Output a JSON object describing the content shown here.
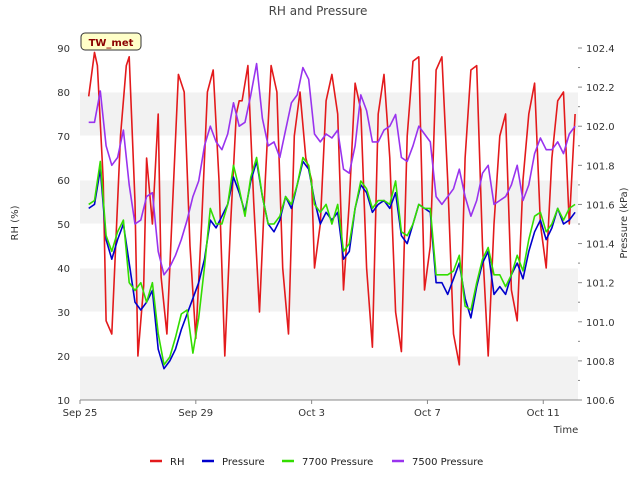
{
  "chart_data": {
    "type": "line",
    "title": "RH and Pressure",
    "badge": "TW_met",
    "xlabel": "Time",
    "ylabel_left": "RH (%)",
    "ylabel_right": "Pressure (kPa)",
    "xlim": [
      0,
      17.2
    ],
    "ylim_left": [
      10,
      90
    ],
    "ylim_right": [
      100.6,
      102.4
    ],
    "x_ticks": [
      {
        "x": 0,
        "label": "Sep 25"
      },
      {
        "x": 4,
        "label": "Sep 29"
      },
      {
        "x": 8,
        "label": "Oct 3"
      },
      {
        "x": 12,
        "label": "Oct 7"
      },
      {
        "x": 16,
        "label": "Oct 11"
      }
    ],
    "y_ticks_left": [
      10,
      20,
      30,
      40,
      50,
      60,
      70,
      80,
      90
    ],
    "y_ticks_right": [
      "100.6",
      "100.8",
      "101.0",
      "101.2",
      "101.4",
      "101.6",
      "101.8",
      "102.0",
      "102.2",
      "102.4"
    ],
    "grid": true,
    "legend_position": "bottom",
    "series": [
      {
        "name": "RH",
        "axis": "left",
        "color": "#e31a1c",
        "x": [
          0.3,
          0.5,
          0.6,
          0.8,
          0.9,
          1.1,
          1.2,
          1.4,
          1.6,
          1.7,
          1.9,
          2.0,
          2.2,
          2.3,
          2.5,
          2.7,
          2.8,
          3.0,
          3.2,
          3.4,
          3.6,
          3.8,
          4.0,
          4.2,
          4.4,
          4.6,
          4.8,
          5.0,
          5.2,
          5.4,
          5.5,
          5.6,
          5.8,
          6.0,
          6.2,
          6.4,
          6.6,
          6.8,
          7.0,
          7.2,
          7.4,
          7.6,
          7.8,
          8.0,
          8.1,
          8.2,
          8.3,
          8.5,
          8.7,
          8.9,
          9.1,
          9.3,
          9.5,
          9.7,
          9.9,
          10.1,
          10.3,
          10.5,
          10.7,
          10.9,
          11.1,
          11.3,
          11.5,
          11.7,
          11.9,
          12.1,
          12.3,
          12.5,
          12.7,
          12.9,
          13.1,
          13.3,
          13.5,
          13.7,
          13.9,
          14.1,
          14.3,
          14.5,
          14.7,
          14.9,
          15.1,
          15.3,
          15.5,
          15.7,
          15.9,
          16.1,
          16.3,
          16.5,
          16.7,
          16.9,
          17.1
        ],
        "y": [
          79,
          89,
          86,
          60,
          28,
          25,
          40,
          70,
          86,
          88,
          55,
          20,
          36,
          65,
          50,
          75,
          38,
          25,
          55,
          84,
          80,
          45,
          24,
          50,
          80,
          85,
          60,
          20,
          50,
          75,
          78,
          78,
          86,
          55,
          30,
          60,
          86,
          80,
          40,
          25,
          70,
          80,
          65,
          60,
          40,
          45,
          50,
          78,
          84,
          75,
          35,
          55,
          82,
          76,
          40,
          22,
          75,
          84,
          65,
          30,
          21,
          70,
          87,
          88,
          35,
          45,
          85,
          88,
          60,
          25,
          18,
          65,
          85,
          86,
          45,
          20,
          50,
          70,
          75,
          35,
          28,
          60,
          75,
          82,
          50,
          40,
          65,
          78,
          80,
          50,
          75
        ]
      },
      {
        "name": "Pressure",
        "axis": "right",
        "color": "#0000cc",
        "x": [
          0.3,
          0.5,
          0.7,
          0.9,
          1.1,
          1.3,
          1.5,
          1.7,
          1.9,
          2.1,
          2.3,
          2.5,
          2.7,
          2.9,
          3.1,
          3.3,
          3.5,
          3.7,
          3.9,
          4.1,
          4.3,
          4.5,
          4.7,
          4.9,
          5.1,
          5.3,
          5.5,
          5.7,
          5.9,
          6.1,
          6.3,
          6.5,
          6.7,
          6.9,
          7.1,
          7.3,
          7.5,
          7.7,
          7.9,
          8.1,
          8.3,
          8.5,
          8.7,
          8.9,
          9.1,
          9.3,
          9.5,
          9.7,
          9.9,
          10.1,
          10.3,
          10.5,
          10.7,
          10.9,
          11.1,
          11.3,
          11.5,
          11.7,
          11.9,
          12.1,
          12.3,
          12.5,
          12.7,
          12.9,
          13.1,
          13.3,
          13.5,
          13.7,
          13.9,
          14.1,
          14.3,
          14.5,
          14.7,
          14.9,
          15.1,
          15.3,
          15.5,
          15.7,
          15.9,
          16.1,
          16.3,
          16.5,
          16.7,
          16.9,
          17.1
        ],
        "y": [
          101.58,
          101.6,
          101.78,
          101.42,
          101.32,
          101.42,
          101.5,
          101.3,
          101.1,
          101.06,
          101.1,
          101.16,
          100.86,
          100.76,
          100.8,
          100.86,
          100.96,
          101.04,
          101.12,
          101.2,
          101.32,
          101.52,
          101.48,
          101.54,
          101.6,
          101.74,
          101.66,
          101.56,
          101.72,
          101.82,
          101.64,
          101.5,
          101.46,
          101.52,
          101.64,
          101.58,
          101.7,
          101.82,
          101.78,
          101.62,
          101.5,
          101.56,
          101.52,
          101.56,
          101.32,
          101.36,
          101.58,
          101.7,
          101.66,
          101.56,
          101.6,
          101.62,
          101.58,
          101.66,
          101.44,
          101.4,
          101.5,
          101.6,
          101.58,
          101.56,
          101.2,
          101.2,
          101.14,
          101.22,
          101.3,
          101.12,
          101.02,
          101.18,
          101.3,
          101.36,
          101.14,
          101.18,
          101.14,
          101.24,
          101.3,
          101.22,
          101.36,
          101.46,
          101.52,
          101.42,
          101.48,
          101.58,
          101.5,
          101.52,
          101.56
        ]
      },
      {
        "name": "7700 Pressure",
        "axis": "right",
        "color": "#33dd00",
        "x": [
          0.3,
          0.5,
          0.7,
          0.9,
          1.1,
          1.3,
          1.5,
          1.7,
          1.9,
          2.1,
          2.3,
          2.5,
          2.7,
          2.9,
          3.1,
          3.3,
          3.5,
          3.7,
          3.9,
          4.1,
          4.3,
          4.5,
          4.7,
          4.9,
          5.1,
          5.3,
          5.5,
          5.7,
          5.9,
          6.1,
          6.3,
          6.5,
          6.7,
          6.9,
          7.1,
          7.3,
          7.5,
          7.7,
          7.9,
          8.1,
          8.3,
          8.5,
          8.7,
          8.9,
          9.1,
          9.3,
          9.5,
          9.7,
          9.9,
          10.1,
          10.3,
          10.5,
          10.7,
          10.9,
          11.1,
          11.3,
          11.5,
          11.7,
          11.9,
          12.1,
          12.3,
          12.5,
          12.7,
          12.9,
          13.1,
          13.3,
          13.5,
          13.7,
          13.9,
          14.1,
          14.3,
          14.5,
          14.7,
          14.9,
          15.1,
          15.3,
          15.5,
          15.7,
          15.9,
          16.1,
          16.3,
          16.5,
          16.7,
          16.9,
          17.1
        ],
        "y": [
          101.6,
          101.62,
          101.82,
          101.44,
          101.36,
          101.46,
          101.52,
          101.2,
          101.16,
          101.2,
          101.1,
          101.2,
          100.94,
          100.78,
          100.82,
          100.92,
          101.04,
          101.06,
          100.84,
          101.02,
          101.28,
          101.58,
          101.5,
          101.5,
          101.6,
          101.8,
          101.68,
          101.54,
          101.74,
          101.84,
          101.64,
          101.5,
          101.5,
          101.54,
          101.64,
          101.6,
          101.7,
          101.84,
          101.8,
          101.6,
          101.56,
          101.6,
          101.5,
          101.6,
          101.36,
          101.4,
          101.58,
          101.72,
          101.68,
          101.58,
          101.62,
          101.62,
          101.6,
          101.72,
          101.46,
          101.44,
          101.5,
          101.6,
          101.58,
          101.58,
          101.24,
          101.24,
          101.24,
          101.26,
          101.34,
          101.08,
          101.06,
          101.2,
          101.32,
          101.38,
          101.24,
          101.24,
          101.18,
          101.24,
          101.34,
          101.26,
          101.42,
          101.54,
          101.56,
          101.46,
          101.5,
          101.58,
          101.52,
          101.58,
          101.6
        ]
      },
      {
        "name": "7500 Pressure",
        "axis": "right",
        "color": "#9933ee",
        "x": [
          0.3,
          0.5,
          0.7,
          0.9,
          1.1,
          1.3,
          1.5,
          1.7,
          1.9,
          2.1,
          2.3,
          2.5,
          2.7,
          2.9,
          3.1,
          3.3,
          3.5,
          3.7,
          3.9,
          4.1,
          4.3,
          4.5,
          4.7,
          4.9,
          5.1,
          5.3,
          5.5,
          5.7,
          5.9,
          6.1,
          6.3,
          6.5,
          6.7,
          6.9,
          7.1,
          7.3,
          7.5,
          7.7,
          7.9,
          8.1,
          8.3,
          8.5,
          8.7,
          8.9,
          9.1,
          9.3,
          9.5,
          9.7,
          9.9,
          10.1,
          10.3,
          10.5,
          10.7,
          10.9,
          11.1,
          11.3,
          11.5,
          11.7,
          11.9,
          12.1,
          12.3,
          12.5,
          12.7,
          12.9,
          13.1,
          13.3,
          13.5,
          13.7,
          13.9,
          14.1,
          14.3,
          14.5,
          14.7,
          14.9,
          15.1,
          15.3,
          15.5,
          15.7,
          15.9,
          16.1,
          16.3,
          16.5,
          16.7,
          16.9,
          17.1
        ],
        "y": [
          102.02,
          102.02,
          102.18,
          101.9,
          101.8,
          101.84,
          101.98,
          101.7,
          101.5,
          101.52,
          101.64,
          101.66,
          101.36,
          101.24,
          101.28,
          101.34,
          101.42,
          101.52,
          101.64,
          101.72,
          101.9,
          102.0,
          101.92,
          101.88,
          101.96,
          102.12,
          102.0,
          102.02,
          102.16,
          102.32,
          102.04,
          101.9,
          101.92,
          101.84,
          101.98,
          102.12,
          102.16,
          102.3,
          102.24,
          101.96,
          101.92,
          101.96,
          101.94,
          101.98,
          101.78,
          101.76,
          101.9,
          102.16,
          102.08,
          101.92,
          101.92,
          101.98,
          102.0,
          102.06,
          101.84,
          101.82,
          101.9,
          102.0,
          101.96,
          101.92,
          101.64,
          101.6,
          101.64,
          101.68,
          101.78,
          101.64,
          101.54,
          101.62,
          101.76,
          101.8,
          101.6,
          101.62,
          101.64,
          101.7,
          101.8,
          101.62,
          101.7,
          101.86,
          101.94,
          101.88,
          101.88,
          101.92,
          101.86,
          101.96,
          102.0
        ]
      }
    ]
  }
}
